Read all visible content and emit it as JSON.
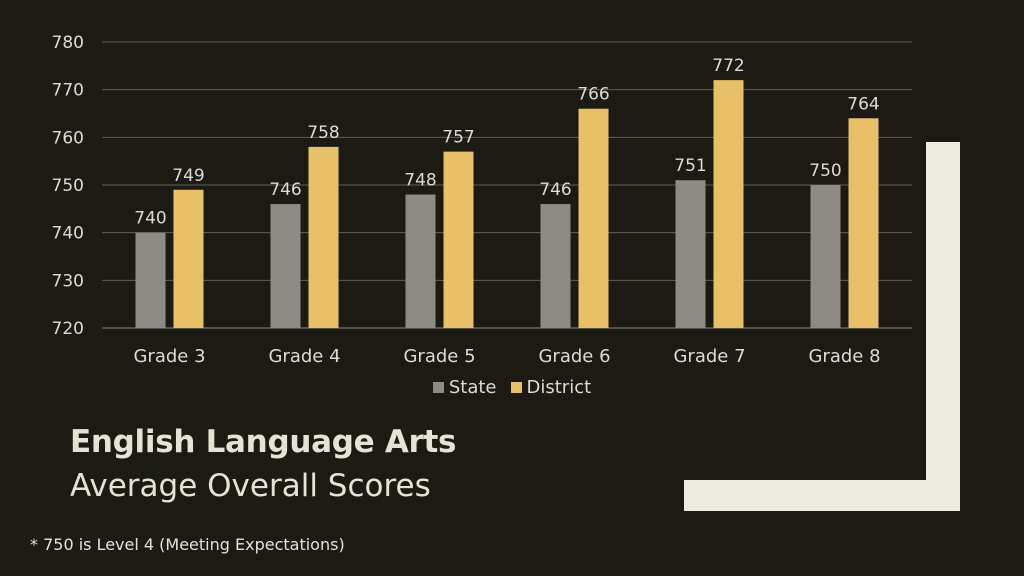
{
  "chart_data": {
    "type": "bar",
    "categories": [
      "Grade 3",
      "Grade 4",
      "Grade 5",
      "Grade 6",
      "Grade 7",
      "Grade 8"
    ],
    "series": [
      {
        "name": "State",
        "values": [
          740,
          746,
          748,
          746,
          751,
          750
        ],
        "color": "#8c8c84"
      },
      {
        "name": "District",
        "values": [
          749,
          758,
          757,
          766,
          772,
          764
        ],
        "color": "#e8c068"
      }
    ],
    "ylim": [
      720,
      780
    ],
    "yticks": [
      720,
      730,
      740,
      750,
      760,
      770,
      780
    ],
    "grid": true,
    "legend_position": "bottom",
    "title": "English Language Arts",
    "subtitle": "Average Overall Scores"
  },
  "footnote": "* 750 is Level 4 (Meeting Expectations)",
  "colors": {
    "background": "#1b1b14",
    "accent": "#eeece1",
    "text": "#e6e3d6"
  }
}
